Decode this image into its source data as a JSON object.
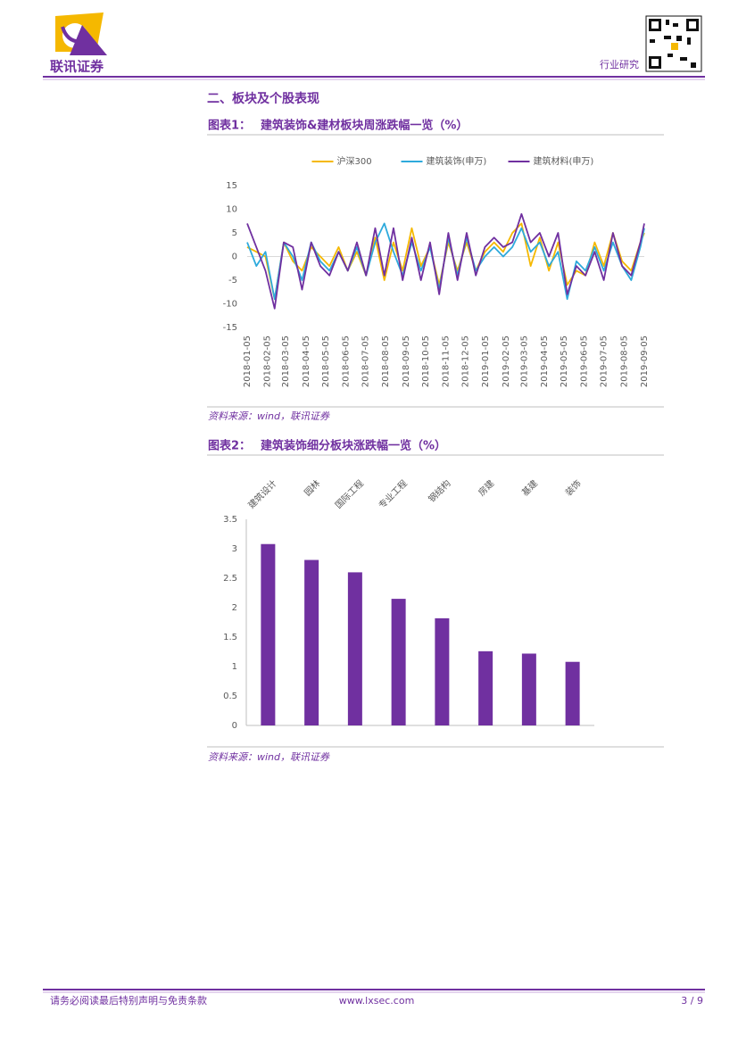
{
  "header": {
    "logo_text": "联讯证券",
    "report_type": "行业研究"
  },
  "section_title": "二、板块及个股表现",
  "figures": [
    {
      "label": "图表1：",
      "title": "建筑装饰&建材板块周涨跌幅一览（%）",
      "source": "资料来源：wind，联讯证券"
    },
    {
      "label": "图表2：",
      "title": "建筑装饰细分板块涨跌幅一览（%）",
      "source": "资料来源：wind，联讯证券"
    }
  ],
  "chart_data": [
    {
      "type": "line",
      "x": [
        "2018-01-05",
        "2018-01-19",
        "2018-02-02",
        "2018-02-16",
        "2018-03-02",
        "2018-03-16",
        "2018-03-30",
        "2018-04-13",
        "2018-04-27",
        "2018-05-11",
        "2018-05-25",
        "2018-06-08",
        "2018-06-22",
        "2018-07-06",
        "2018-07-20",
        "2018-08-03",
        "2018-08-17",
        "2018-08-31",
        "2018-09-14",
        "2018-09-28",
        "2018-10-12",
        "2018-10-26",
        "2018-11-09",
        "2018-11-23",
        "2018-12-07",
        "2018-12-21",
        "2019-01-04",
        "2019-01-18",
        "2019-02-01",
        "2019-02-15",
        "2019-03-01",
        "2019-03-15",
        "2019-03-29",
        "2019-04-12",
        "2019-04-26",
        "2019-05-10",
        "2019-05-24",
        "2019-06-07",
        "2019-06-21",
        "2019-07-05",
        "2019-07-19",
        "2019-08-02",
        "2019-08-16",
        "2019-08-30",
        "2019-09-05"
      ],
      "xticks": [
        "2018-01-05",
        "2018-02-05",
        "2018-03-05",
        "2018-04-05",
        "2018-05-05",
        "2018-06-05",
        "2018-07-05",
        "2018-08-05",
        "2018-09-05",
        "2018-10-05",
        "2018-11-05",
        "2018-12-05",
        "2019-01-05",
        "2019-02-05",
        "2019-03-05",
        "2019-04-05",
        "2019-05-05",
        "2019-06-05",
        "2019-07-05",
        "2019-08-05",
        "2019-09-05"
      ],
      "xlim": [
        "2018-01-05",
        "2019-09-05"
      ],
      "ylim": [
        -15,
        15
      ],
      "yticks": [
        -15,
        -10,
        -5,
        0,
        5,
        10,
        15
      ],
      "legend": "top",
      "series": [
        {
          "name": "沪深300",
          "color": "#f5b800",
          "values": [
            2,
            1,
            0,
            -9,
            3,
            -1,
            -3,
            2,
            0,
            -2,
            2,
            -3,
            1,
            -4,
            4,
            -5,
            3,
            -3,
            6,
            -2,
            2,
            -6,
            3,
            -3,
            3,
            -3,
            1,
            3,
            1,
            5,
            7,
            -2,
            4,
            -3,
            3,
            -6,
            -3,
            -4,
            3,
            -2,
            5,
            -1,
            -3,
            3,
            5
          ]
        },
        {
          "name": "建筑装饰(申万)",
          "color": "#2eaadc",
          "values": [
            3,
            -2,
            1,
            -9,
            3,
            0,
            -5,
            3,
            -1,
            -3,
            1,
            -3,
            2,
            -4,
            3,
            7,
            1,
            -4,
            3,
            -3,
            2,
            -7,
            4,
            -4,
            4,
            -3,
            0,
            2,
            0,
            2,
            6,
            1,
            3,
            -2,
            1,
            -9,
            -1,
            -3,
            2,
            -3,
            3,
            -2,
            -5,
            2,
            6
          ]
        },
        {
          "name": "建筑材料(申万)",
          "color": "#7030a0",
          "values": [
            7,
            2,
            -3,
            -11,
            3,
            2,
            -7,
            3,
            -2,
            -4,
            1,
            -3,
            3,
            -4,
            6,
            -4,
            6,
            -5,
            4,
            -5,
            3,
            -8,
            5,
            -5,
            5,
            -4,
            2,
            4,
            2,
            3,
            9,
            3,
            5,
            0,
            5,
            -8,
            -2,
            -4,
            1,
            -5,
            5,
            -2,
            -4,
            3,
            7
          ]
        }
      ]
    },
    {
      "type": "bar",
      "categories": [
        "建筑设计",
        "园林",
        "国际工程",
        "专业工程",
        "钢结构",
        "房建",
        "基建",
        "装饰"
      ],
      "values": [
        3.08,
        2.81,
        2.6,
        2.15,
        1.82,
        1.26,
        1.22,
        1.08
      ],
      "color": "#7030a0",
      "ylim": [
        0,
        3.5
      ],
      "yticks": [
        0,
        0.5,
        1,
        1.5,
        2,
        2.5,
        3,
        3.5
      ]
    }
  ],
  "footer": {
    "disclaimer": "请务必阅读最后特别声明与免责条款",
    "website": "www.lxsec.com",
    "page": "3 / 9"
  }
}
